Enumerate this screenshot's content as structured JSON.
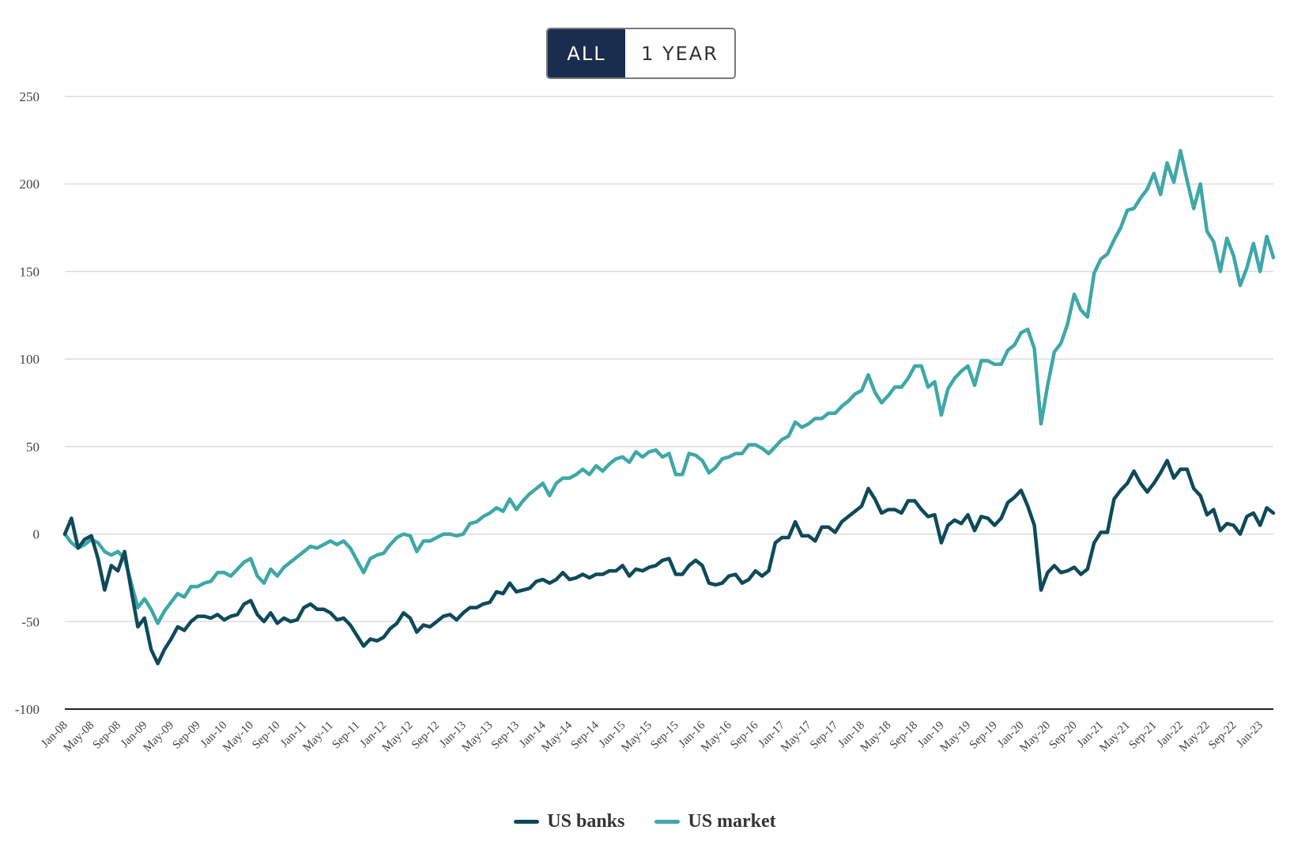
{
  "toggle": {
    "all_label": "ALL",
    "year_label": "1 YEAR",
    "active_color": "#1b2d4f"
  },
  "legend": [
    {
      "name": "US banks",
      "color": "#0e4a5a"
    },
    {
      "name": "US market",
      "color": "#3fa7a8"
    }
  ],
  "chart_data": {
    "type": "line",
    "ylim": [
      -100,
      250
    ],
    "yticks": [
      250,
      200,
      150,
      100,
      50,
      0,
      -50,
      -100
    ],
    "grid": true,
    "legend_position": "bottom-center",
    "xtick_labels": [
      "Jan-08",
      "May-08",
      "Sep-08",
      "Jan-09",
      "May-09",
      "Sep-09",
      "Jan-10",
      "May-10",
      "Sep-10",
      "Jan-11",
      "May-11",
      "Sep-11",
      "Jan-12",
      "May-12",
      "Sep-12",
      "Jan-13",
      "May-13",
      "Sep-13",
      "Jan-14",
      "May-14",
      "Sep-14",
      "Jan-15",
      "May-15",
      "Sep-15",
      "Jan-16",
      "May-16",
      "Sep-16",
      "Jan-17",
      "May-17",
      "Sep-17",
      "Jan-18",
      "May-18",
      "Sep-18",
      "Jan-19",
      "May-19",
      "Sep-19",
      "Jan-20",
      "May-20",
      "Sep-20",
      "Jan-21",
      "May-21",
      "Sep-21",
      "Jan-22",
      "May-22",
      "Sep-22",
      "Jan-23"
    ],
    "series": [
      {
        "name": "US banks",
        "color": "#0e4a5a",
        "values": [
          0,
          9,
          -8,
          -3,
          -1,
          -14,
          -32,
          -18,
          -21,
          -10,
          -32,
          -53,
          -48,
          -66,
          -74,
          -66,
          -60,
          -53,
          -55,
          -50,
          -47,
          -47,
          -48,
          -46,
          -49,
          -47,
          -46,
          -40,
          -38,
          -46,
          -50,
          -45,
          -51,
          -48,
          -50,
          -49,
          -42,
          -40,
          -43,
          -43,
          -45,
          -49,
          -48,
          -52,
          -58,
          -64,
          -60,
          -61,
          -59,
          -54,
          -51,
          -45,
          -48,
          -56,
          -52,
          -53,
          -50,
          -47,
          -46,
          -49,
          -45,
          -42,
          -42,
          -40,
          -39,
          -33,
          -34,
          -28,
          -33,
          -32,
          -31,
          -27,
          -26,
          -28,
          -26,
          -22,
          -26,
          -25,
          -23,
          -25,
          -23,
          -23,
          -21,
          -21,
          -18,
          -24,
          -20,
          -21,
          -19,
          -18,
          -15,
          -14,
          -23,
          -23,
          -18,
          -15,
          -18,
          -28,
          -29,
          -28,
          -24,
          -23,
          -28,
          -26,
          -21,
          -24,
          -21,
          -5,
          -2,
          -2,
          7,
          -1,
          -1,
          -4,
          4,
          4,
          1,
          7,
          10,
          13,
          16,
          26,
          20,
          12,
          14,
          14,
          12,
          19,
          19,
          14,
          10,
          11,
          -5,
          5,
          8,
          6,
          11,
          2,
          10,
          9,
          5,
          9,
          18,
          21,
          25,
          16,
          5,
          -32,
          -22,
          -18,
          -22,
          -21,
          -19,
          -23,
          -20,
          -5,
          1,
          1,
          20,
          25,
          29,
          36,
          29,
          24,
          29,
          35,
          42,
          32,
          37,
          37,
          26,
          22,
          11,
          14,
          2,
          6,
          5,
          0,
          10,
          12,
          5,
          15,
          12
        ]
      },
      {
        "name": "US market",
        "color": "#3fa7a8",
        "values": [
          0,
          -5,
          -8,
          -6,
          -3,
          -5,
          -10,
          -12,
          -10,
          -14,
          -28,
          -42,
          -37,
          -43,
          -51,
          -44,
          -39,
          -34,
          -36,
          -30,
          -30,
          -28,
          -27,
          -22,
          -22,
          -24,
          -20,
          -16,
          -14,
          -24,
          -28,
          -20,
          -24,
          -19,
          -16,
          -13,
          -10,
          -7,
          -8,
          -6,
          -4,
          -6,
          -4,
          -8,
          -15,
          -22,
          -14,
          -12,
          -11,
          -6,
          -2,
          0,
          -1,
          -10,
          -4,
          -4,
          -2,
          0,
          0,
          -1,
          0,
          6,
          7,
          10,
          12,
          15,
          13,
          20,
          14,
          19,
          23,
          26,
          29,
          22,
          29,
          32,
          32,
          34,
          37,
          34,
          39,
          36,
          40,
          43,
          44,
          41,
          47,
          44,
          47,
          48,
          44,
          46,
          34,
          34,
          46,
          45,
          42,
          35,
          38,
          43,
          44,
          46,
          46,
          51,
          51,
          49,
          46,
          50,
          54,
          56,
          64,
          61,
          63,
          66,
          66,
          69,
          69,
          73,
          76,
          80,
          82,
          91,
          81,
          75,
          79,
          84,
          84,
          89,
          96,
          96,
          84,
          87,
          68,
          83,
          89,
          93,
          96,
          85,
          99,
          99,
          97,
          97,
          105,
          108,
          115,
          117,
          106,
          63,
          85,
          104,
          109,
          120,
          137,
          128,
          124,
          149,
          157,
          160,
          168,
          175,
          185,
          186,
          192,
          197,
          206,
          194,
          212,
          201,
          219,
          202,
          186,
          200,
          173,
          167,
          150,
          169,
          159,
          142,
          152,
          166,
          150,
          170,
          158
        ]
      }
    ]
  }
}
